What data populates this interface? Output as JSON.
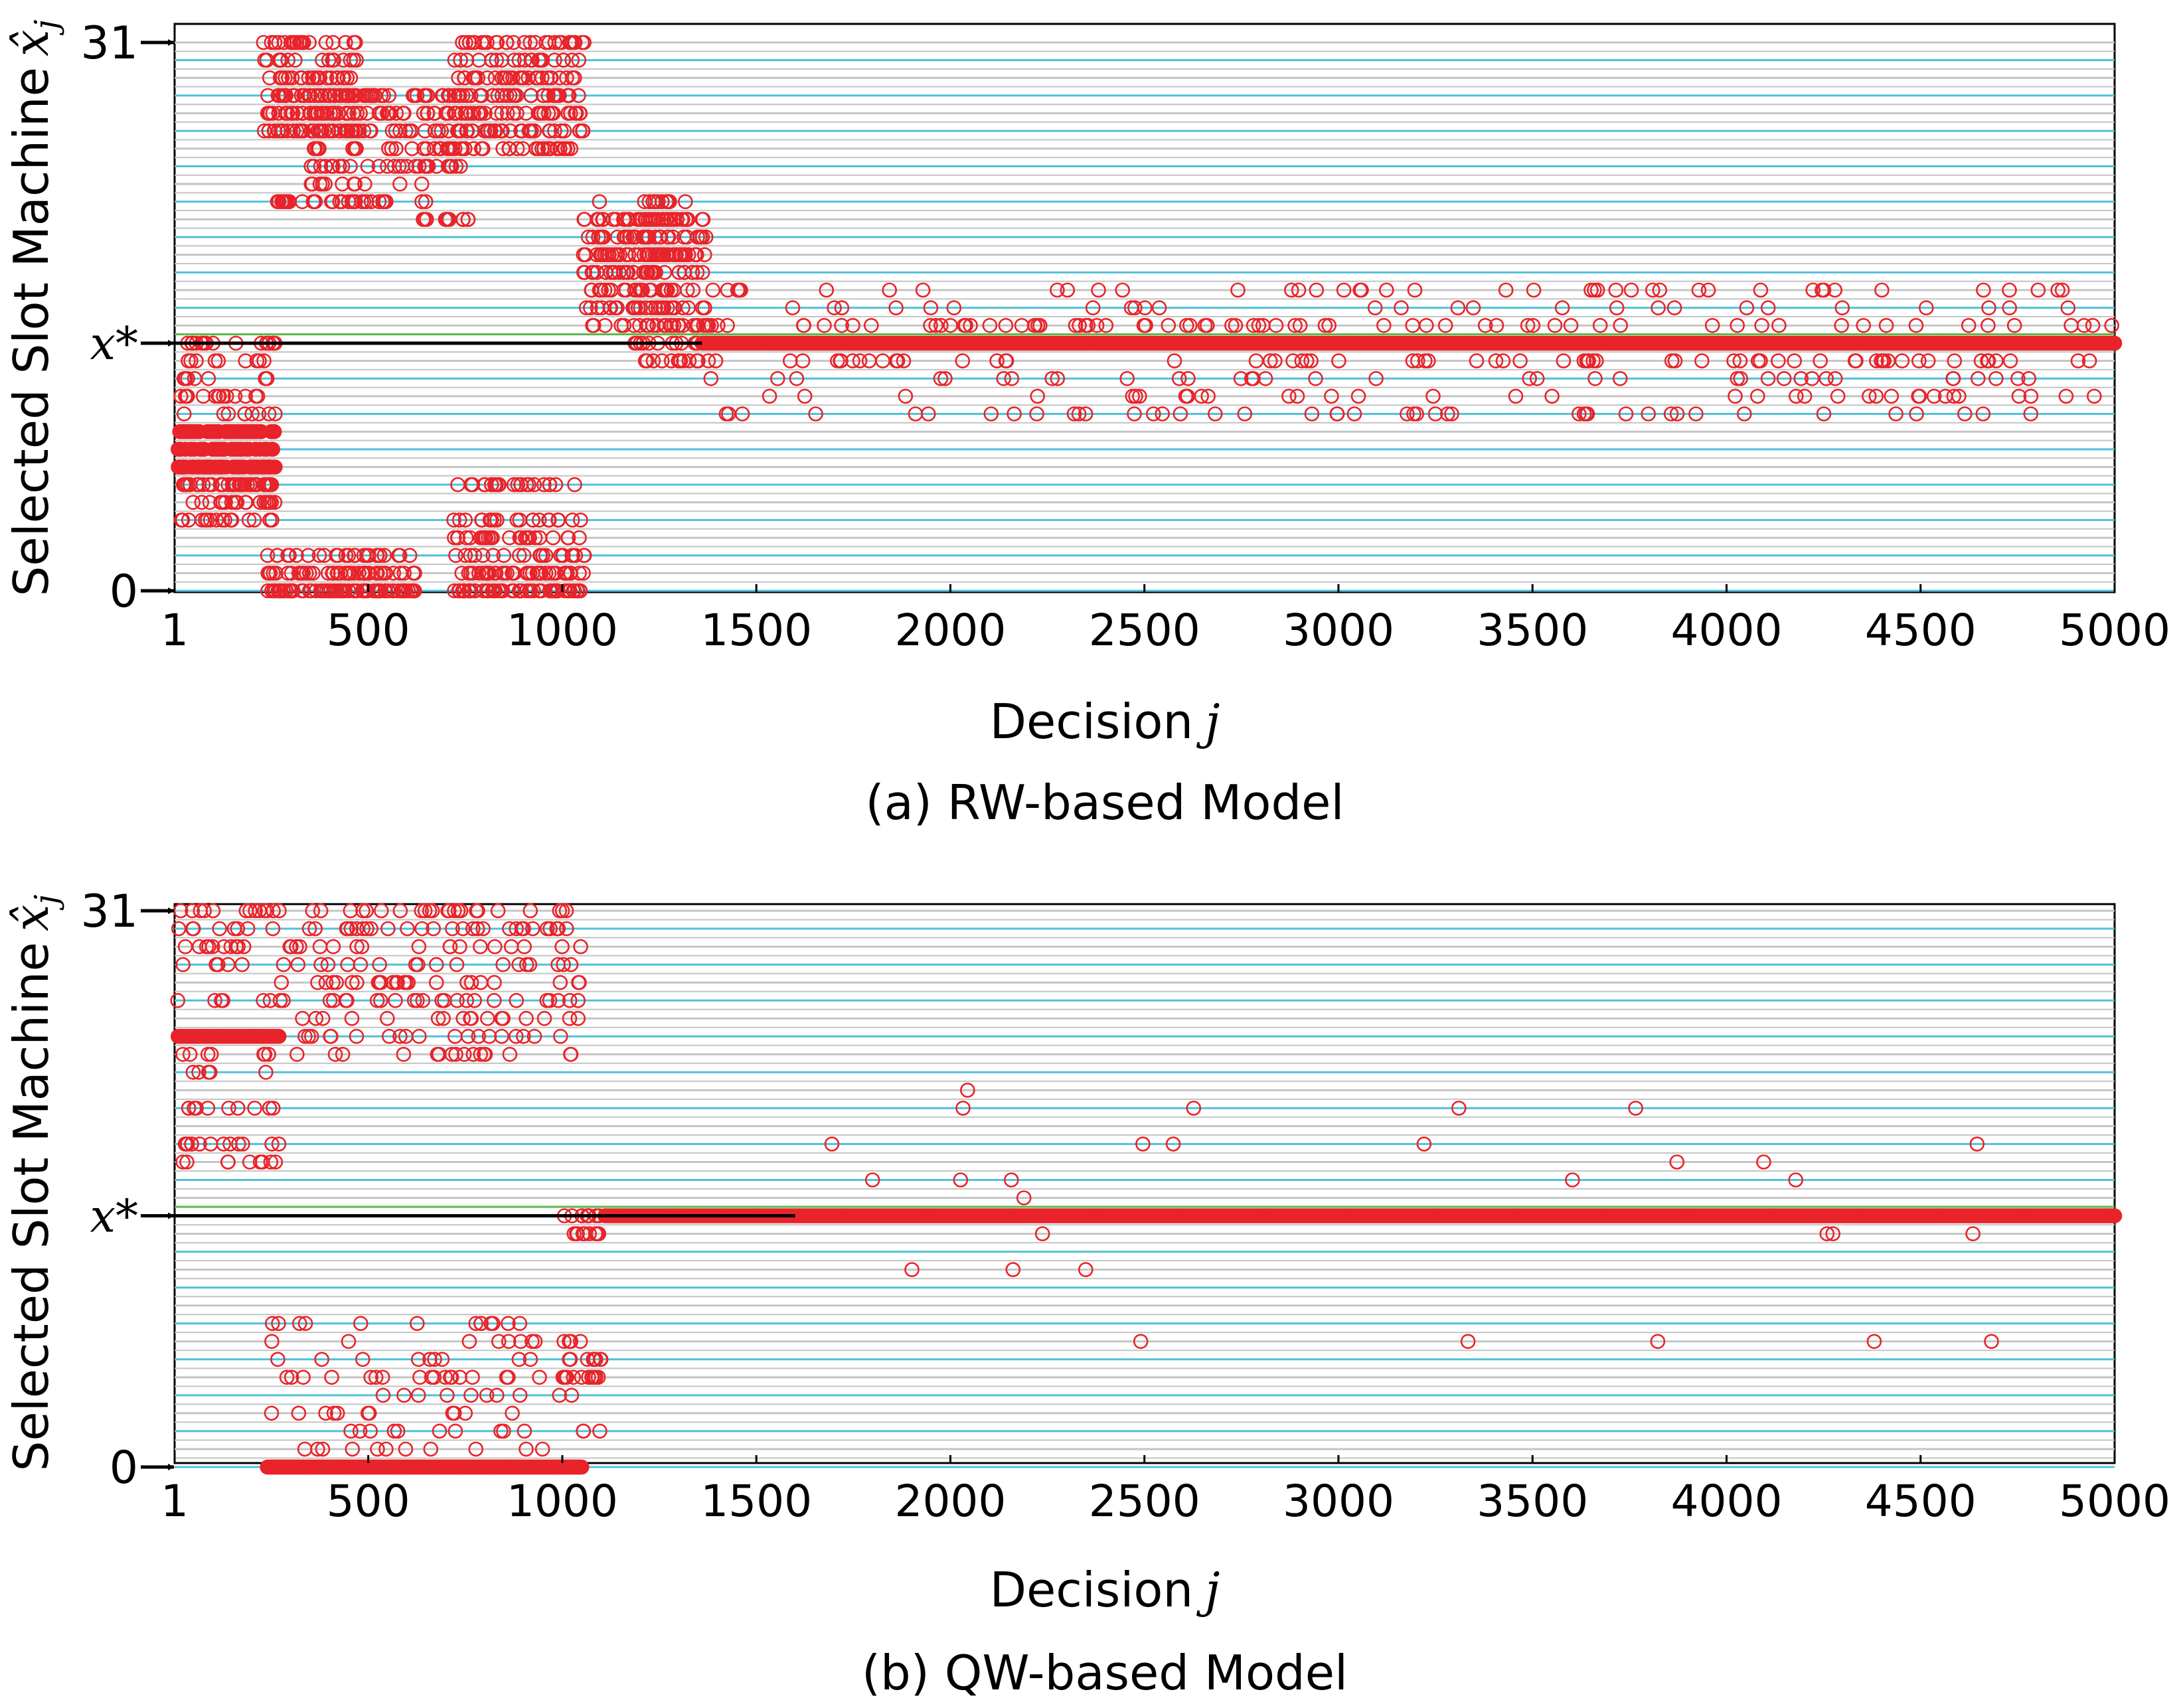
{
  "chart_data": [
    {
      "type": "scatter",
      "caption": "(a) RW-based Model",
      "xlabel": "Decision",
      "xlabel_var": "j",
      "ylabel": "Selected Slot Machine",
      "ylabel_var": "x̂",
      "ylabel_sub": "j",
      "xticks": [
        "1",
        "500",
        "1000",
        "1500",
        "2000",
        "2500",
        "3000",
        "3500",
        "4000",
        "4500",
        "5000"
      ],
      "xtick_values": [
        1,
        500,
        1000,
        1500,
        2000,
        2500,
        3000,
        3500,
        4000,
        4500,
        5000
      ],
      "xlim": [
        1,
        5000
      ],
      "ylim": [
        0,
        31
      ],
      "ytick_labels": [
        "0",
        "x*",
        "31"
      ],
      "ytick_values": [
        0,
        14,
        31
      ],
      "xstar": 14,
      "xstar_label": "x*",
      "highlight_row": 15,
      "colors": {
        "marker": "#e8242a",
        "xstar_line": "#000000",
        "highlight": "#58b84a",
        "grid_a": "#52c0d8",
        "grid_b": "#c4c4c4"
      },
      "series": [
        {
          "x_start": 10,
          "x_end": 260,
          "y_values": [
            4,
            5,
            5,
            6,
            6,
            6,
            7,
            7,
            8,
            9,
            10,
            11,
            12,
            13,
            14
          ],
          "count": 190
        },
        {
          "x_start": 10,
          "x_end": 260,
          "y_values": [
            9,
            8,
            7
          ],
          "count": 120,
          "dense": true
        },
        {
          "x_start": 240,
          "x_end": 620,
          "y_values": [
            0,
            0,
            0,
            1,
            1,
            2
          ],
          "count": 150
        },
        {
          "x_start": 230,
          "x_end": 470,
          "y_values": [
            26,
            27,
            28,
            29,
            30,
            31,
            22
          ],
          "count": 160
        },
        {
          "x_start": 350,
          "x_end": 650,
          "y_values": [
            24,
            25,
            26,
            27,
            28,
            22,
            23
          ],
          "count": 130
        },
        {
          "x_start": 720,
          "x_end": 1060,
          "y_values": [
            0,
            0,
            0,
            1,
            1,
            2,
            3,
            4,
            6
          ],
          "count": 190
        },
        {
          "x_start": 720,
          "x_end": 1060,
          "y_values": [
            27,
            28,
            29,
            30,
            31,
            26,
            25
          ],
          "count": 200
        },
        {
          "x_start": 640,
          "x_end": 760,
          "y_values": [
            24,
            25,
            26,
            27,
            28,
            21
          ],
          "count": 70
        },
        {
          "x_start": 1050,
          "x_end": 1320,
          "y_values": [
            18,
            19,
            20,
            21,
            22,
            17,
            16,
            15,
            19,
            18
          ],
          "count": 170
        },
        {
          "x_start": 1180,
          "x_end": 1380,
          "y_values": [
            15,
            16,
            17,
            18,
            19,
            20,
            21,
            14,
            13
          ],
          "count": 120
        },
        {
          "x_start": 1360,
          "x_end": 5000,
          "y_values": [
            12,
            13,
            13,
            15,
            15,
            16,
            11,
            17,
            10
          ],
          "count": 330,
          "sparse": true
        },
        {
          "x_start": 1360,
          "x_end": 5000,
          "y_values": [
            14
          ],
          "count": 800,
          "dense": true
        }
      ]
    },
    {
      "type": "scatter",
      "caption": "(b) QW-based Model",
      "xlabel": "Decision",
      "xlabel_var": "j",
      "ylabel": "Selected Slot Machine",
      "ylabel_var": "x̂",
      "ylabel_sub": "j",
      "xticks": [
        "1",
        "500",
        "1000",
        "1500",
        "2000",
        "2500",
        "3000",
        "3500",
        "4000",
        "4500",
        "5000"
      ],
      "xtick_values": [
        1,
        500,
        1000,
        1500,
        2000,
        2500,
        3000,
        3500,
        4000,
        4500,
        5000
      ],
      "xlim": [
        1,
        5000
      ],
      "ylim": [
        0,
        31
      ],
      "ytick_labels": [
        "0",
        "x*",
        "31"
      ],
      "ytick_values": [
        0,
        14,
        31
      ],
      "xstar": 14,
      "xstar_label": "x*",
      "highlight_row": 15,
      "colors": {
        "marker": "#e8242a",
        "xstar_line": "#000000",
        "highlight": "#58b84a",
        "grid_a": "#52c0d8",
        "grid_b": "#c4c4c4"
      },
      "series": [
        {
          "x_start": 1,
          "x_end": 270,
          "y_values": [
            28,
            29,
            30,
            31,
            26,
            24,
            23,
            22,
            20,
            18,
            17
          ],
          "count": 90
        },
        {
          "x_start": 10,
          "x_end": 270,
          "y_values": [
            24
          ],
          "count": 140,
          "dense": true
        },
        {
          "x_start": 270,
          "x_end": 1050,
          "y_values": [
            24,
            25,
            26,
            27,
            28,
            29,
            30,
            31,
            23
          ],
          "count": 190
        },
        {
          "x_start": 240,
          "x_end": 1050,
          "y_values": [
            0
          ],
          "count": 400,
          "dense": true
        },
        {
          "x_start": 240,
          "x_end": 1100,
          "y_values": [
            1,
            2,
            3,
            4,
            5,
            6,
            7,
            8
          ],
          "count": 100
        },
        {
          "x_start": 1000,
          "x_end": 1110,
          "y_values": [
            6,
            5,
            14,
            13
          ],
          "count": 40
        },
        {
          "x_start": 1110,
          "x_end": 5000,
          "y_values": [
            14
          ],
          "count": 800,
          "dense": true
        },
        {
          "x_start": 1600,
          "x_end": 4800,
          "y_values": [
            15,
            13,
            16,
            17,
            11,
            7,
            18,
            20,
            21
          ],
          "count": 30,
          "sparse": true
        }
      ]
    }
  ]
}
